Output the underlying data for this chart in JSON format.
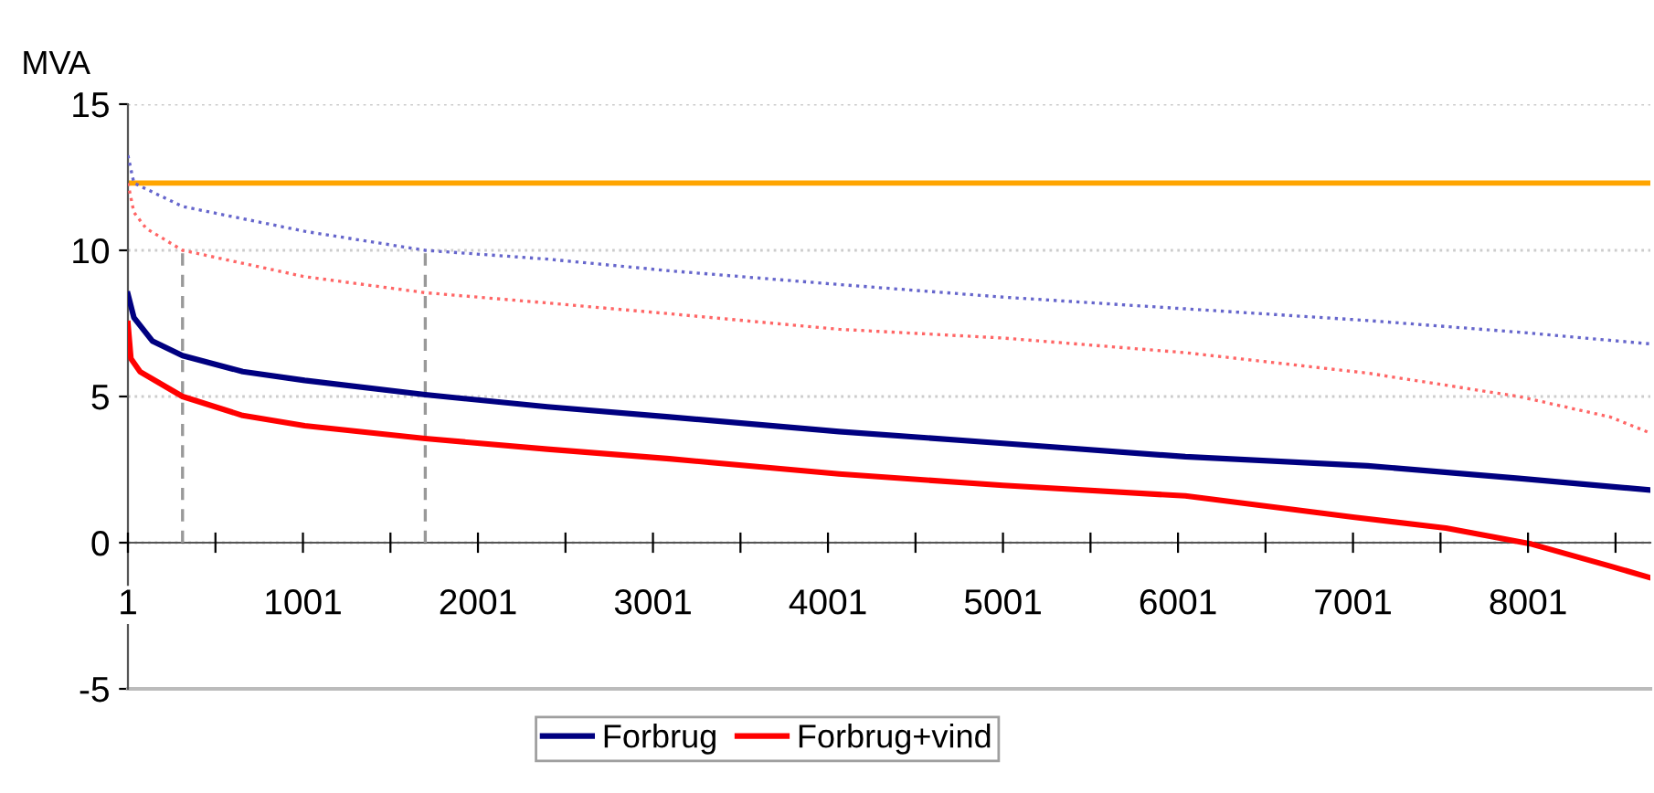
{
  "chart_data": {
    "type": "line",
    "ylabel": "MVA",
    "xlim": [
      1,
      8700
    ],
    "ylim": [
      -5,
      15
    ],
    "yticks": [
      -5,
      0,
      5,
      10,
      15
    ],
    "xticks": [
      1,
      {
        "value": 501,
        "label": null
      },
      1001,
      {
        "value": 1501,
        "label": null
      },
      2001,
      {
        "value": 2501,
        "label": null
      },
      3001,
      {
        "value": 3501,
        "label": null
      },
      4001,
      {
        "value": 4501,
        "label": null
      },
      5001,
      {
        "value": 5501,
        "label": null
      },
      6001,
      {
        "value": 6501,
        "label": null
      },
      7001,
      {
        "value": 7501,
        "label": null
      },
      8001,
      {
        "value": 8501,
        "label": null
      }
    ],
    "grid": "y",
    "legend": "bottom",
    "marker": "none",
    "series": [
      {
        "name": "Forbrug",
        "color": "#000080",
        "line_style": "solid",
        "x": [
          1,
          35,
          140,
          313,
          657,
          1011,
          1700,
          2397,
          3095,
          4064,
          5001,
          6043,
          7084,
          7949,
          8700
        ],
        "values": [
          8.5,
          7.7,
          6.9,
          6.4,
          5.85,
          5.55,
          5.06,
          4.65,
          4.3,
          3.8,
          3.4,
          2.94,
          2.63,
          2.2,
          1.8
        ]
      },
      {
        "name": "Forbrug+vind",
        "color": "#ff0000",
        "line_style": "solid",
        "x": [
          1,
          18,
          70,
          313,
          657,
          1011,
          1700,
          2397,
          3095,
          4064,
          5001,
          6043,
          7011,
          7532,
          8022,
          8470,
          8700
        ],
        "values": [
          7.5,
          6.3,
          5.85,
          5.0,
          4.35,
          4.0,
          3.56,
          3.2,
          2.87,
          2.35,
          1.96,
          1.6,
          0.87,
          0.5,
          -0.05,
          -0.8,
          -1.2
        ]
      },
      {
        "color": "#6666cc",
        "line_style": "dotted",
        "x": [
          1,
          35,
          313,
          1011,
          1700,
          2397,
          3095,
          4064,
          5001,
          6043,
          7084,
          7949,
          8700
        ],
        "values": [
          13.25,
          12.3,
          11.5,
          10.65,
          10.0,
          9.7,
          9.3,
          8.83,
          8.4,
          8.0,
          7.6,
          7.2,
          6.8
        ]
      },
      {
        "color": "#ff6666",
        "line_style": "dotted",
        "x": [
          1,
          35,
          105,
          313,
          1011,
          1700,
          2397,
          3095,
          4064,
          5001,
          6043,
          7084,
          7949,
          8470,
          8700
        ],
        "values": [
          12.3,
          11.3,
          10.75,
          10.0,
          9.1,
          8.55,
          8.2,
          7.83,
          7.3,
          7.0,
          6.5,
          5.8,
          5.0,
          4.3,
          3.75
        ]
      },
      {
        "color": "#999999",
        "line_style": "dashed",
        "x": [
          313,
          313
        ],
        "values": [
          0,
          10.0
        ]
      },
      {
        "color": "#999999",
        "line_style": "dashed",
        "x": [
          1700,
          1700
        ],
        "values": [
          0,
          10.0
        ]
      }
    ],
    "ref_lines": [
      {
        "axis": "y",
        "value": 12.3,
        "color": "#ffa500",
        "line_style": "solid"
      }
    ]
  }
}
